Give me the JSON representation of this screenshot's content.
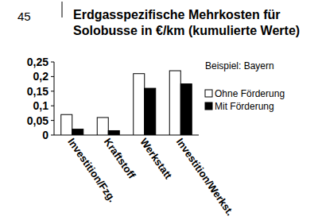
{
  "chart_data": {
    "type": "bar",
    "title": "Erdgasspezifische Mehrkosten für Solobusse in €/km (kumulierte Werte)",
    "annotations": [
      "45",
      "Beispiel: Bayern"
    ],
    "categories": [
      "Investition/Fzg.",
      "Kraftstoff",
      "Werkstatt",
      "Investition/Werkst."
    ],
    "series": [
      {
        "name": "Ohne Förderung",
        "color": "#ffffff",
        "values": [
          0.07,
          0.06,
          0.21,
          0.22
        ]
      },
      {
        "name": "Mit Förderung",
        "color": "#000000",
        "values": [
          0.02,
          0.015,
          0.16,
          0.175
        ]
      }
    ],
    "ylim": [
      0,
      0.25
    ],
    "yticks": [
      0,
      {
        "value": 0.05,
        "label": "0,05"
      },
      {
        "value": 0.1,
        "label": "0,1"
      },
      {
        "value": 0.15,
        "label": "0,15"
      },
      {
        "value": 0.2,
        "label": "0,2"
      },
      {
        "value": 0.25,
        "label": "0,25"
      }
    ],
    "legend": "right",
    "grid": false
  }
}
